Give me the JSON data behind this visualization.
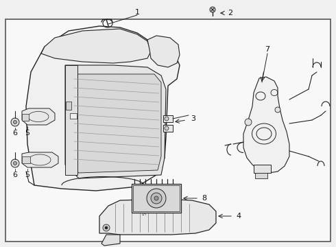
{
  "bg_color": "#f0f0f0",
  "inner_bg": "#e8eaec",
  "border_color": "#444444",
  "line_color": "#222222",
  "label_color": "#111111",
  "fig_w": 4.9,
  "fig_h": 3.6,
  "dpi": 100
}
